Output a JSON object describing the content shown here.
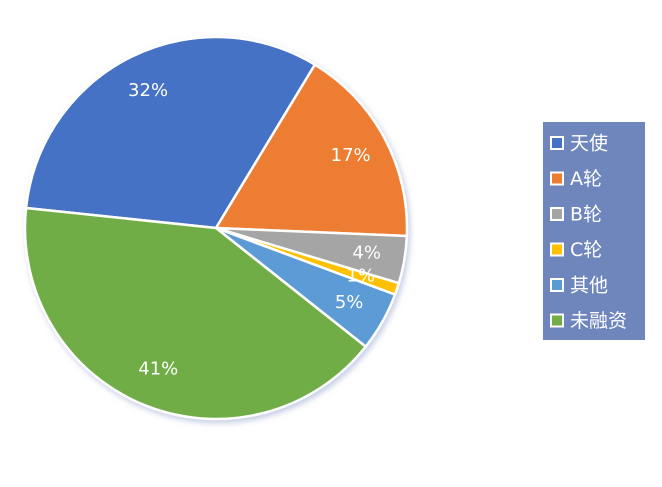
{
  "chart_data": {
    "type": "pie",
    "categories": [
      "天使",
      "A轮",
      "B轮",
      "C轮",
      "其他",
      "未融资"
    ],
    "values": [
      32,
      17,
      4,
      1,
      5,
      41
    ],
    "value_labels": [
      "32%",
      "17%",
      "4%",
      "1%",
      "5%",
      "41%"
    ],
    "colors": [
      "#4472c4",
      "#ed7d31",
      "#a5a5a5",
      "#ffc000",
      "#5b9bd5",
      "#70ad47"
    ],
    "legend": "right"
  }
}
